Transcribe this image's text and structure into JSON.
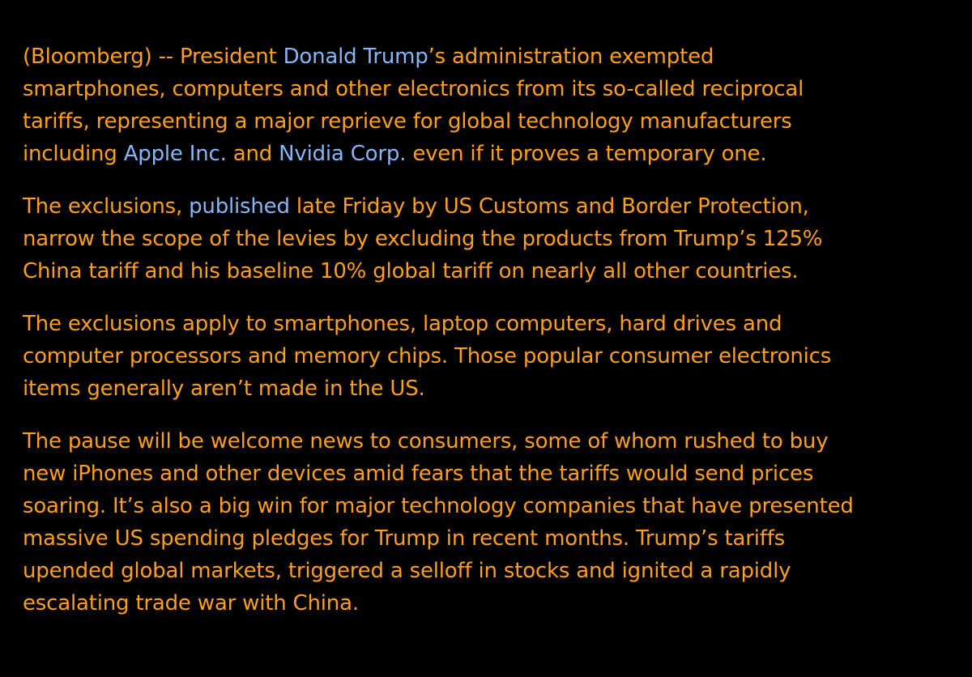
{
  "paragraphs": [
    {
      "lines": [
        [
          {
            "text": "(Bloomberg) -- President "
          },
          {
            "text": "Donald Trump",
            "link": true
          },
          {
            "text": "’s administration exempted"
          }
        ],
        [
          {
            "text": "smartphones, computers and other electronics from its so-called reciprocal"
          }
        ],
        [
          {
            "text": "tariffs, representing a major reprieve for global technology manufacturers"
          }
        ],
        [
          {
            "text": "including "
          },
          {
            "text": "Apple Inc.",
            "link": true
          },
          {
            "text": " and "
          },
          {
            "text": "Nvidia Corp.",
            "link": true
          },
          {
            "text": " even if it proves a temporary one."
          }
        ]
      ]
    },
    {
      "lines": [
        [
          {
            "text": "The exclusions, "
          },
          {
            "text": "published",
            "link": true
          },
          {
            "text": " late Friday by US Customs and Border Protection,"
          }
        ],
        [
          {
            "text": "narrow the scope of the levies by excluding the products from Trump’s 125%"
          }
        ],
        [
          {
            "text": "China tariff and his baseline 10% global tariff on nearly all other countries."
          }
        ]
      ]
    },
    {
      "lines": [
        [
          {
            "text": "The exclusions apply to smartphones, laptop computers, hard drives and"
          }
        ],
        [
          {
            "text": "computer processors and memory chips. Those popular consumer electronics"
          }
        ],
        [
          {
            "text": "items generally aren’t made in the US."
          }
        ]
      ]
    },
    {
      "lines": [
        [
          {
            "text": "The pause will be welcome news to consumers, some of whom rushed to buy"
          }
        ],
        [
          {
            "text": "new iPhones and other devices amid fears that the tariffs would send prices"
          }
        ],
        [
          {
            "text": "soaring. It’s also a big win for major technology companies that have presented"
          }
        ],
        [
          {
            "text": "massive US spending pledges for Trump in recent months. Trump’s tariffs"
          }
        ],
        [
          {
            "text": "upended global markets, triggered a selloff in stocks and ignited a rapidly"
          }
        ],
        [
          {
            "text": "escalating trade war with China."
          }
        ]
      ]
    }
  ]
}
